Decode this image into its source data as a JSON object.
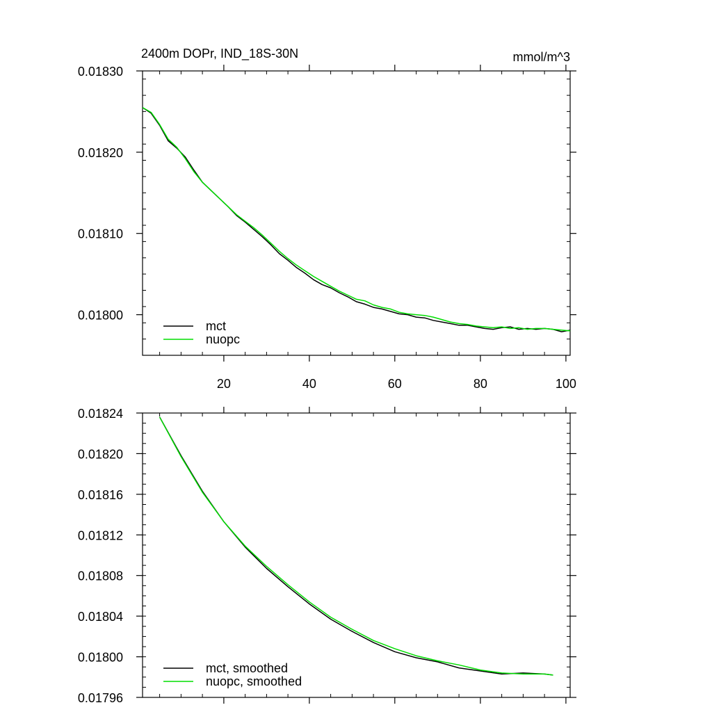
{
  "chart_data": [
    {
      "type": "line",
      "title": "2400m DOPr, IND_18S-30N",
      "units": "mmol/m^3",
      "xlim": [
        1,
        101
      ],
      "ylim": [
        0.01795,
        0.0183
      ],
      "x_ticks": [
        20,
        40,
        60,
        80,
        100
      ],
      "x_tick_labels": [
        "20",
        "40",
        "60",
        "80",
        "100"
      ],
      "y_ticks": [
        0.018,
        0.0181,
        0.0182,
        0.0183
      ],
      "y_tick_labels": [
        "0.01800",
        "0.01810",
        "0.01820",
        "0.01830"
      ],
      "grid": false,
      "legend": "bottom-left",
      "series": [
        {
          "name": "mct",
          "color": "#000000",
          "x": [
            1,
            3,
            5,
            7,
            9,
            11,
            13,
            15,
            17,
            19,
            21,
            23,
            25,
            27,
            29,
            31,
            33,
            35,
            37,
            39,
            41,
            43,
            45,
            47,
            49,
            51,
            53,
            55,
            57,
            59,
            61,
            63,
            65,
            67,
            69,
            71,
            73,
            75,
            77,
            79,
            81,
            83,
            85,
            87,
            89,
            91,
            93,
            95,
            97,
            99,
            101
          ],
          "values": [
            0.018255,
            0.018248,
            0.018233,
            0.018214,
            0.018205,
            0.018194,
            0.018178,
            0.018163,
            0.018153,
            0.018143,
            0.018133,
            0.018122,
            0.018114,
            0.018105,
            0.018096,
            0.018086,
            0.018075,
            0.018067,
            0.018058,
            0.018051,
            0.018043,
            0.018037,
            0.018033,
            0.018027,
            0.018022,
            0.018016,
            0.018013,
            0.018009,
            0.018007,
            0.018004,
            0.018001,
            0.018,
            0.017997,
            0.017996,
            0.017993,
            0.017991,
            0.017989,
            0.017987,
            0.017987,
            0.017985,
            0.017983,
            0.017982,
            0.017984,
            0.017985,
            0.017982,
            0.017983,
            0.017982,
            0.017983,
            0.017982,
            0.017979,
            0.017981
          ]
        },
        {
          "name": "nuopc",
          "color": "#00dd00",
          "x": [
            1,
            3,
            5,
            7,
            9,
            11,
            13,
            15,
            17,
            19,
            21,
            23,
            25,
            27,
            29,
            31,
            33,
            35,
            37,
            39,
            41,
            43,
            45,
            47,
            49,
            51,
            53,
            55,
            57,
            59,
            61,
            63,
            65,
            67,
            69,
            71,
            73,
            75,
            77,
            79,
            81,
            83,
            85,
            87,
            89,
            91,
            93,
            95,
            97,
            99,
            101
          ],
          "values": [
            0.018255,
            0.018249,
            0.018234,
            0.018216,
            0.018206,
            0.018192,
            0.018176,
            0.018163,
            0.018153,
            0.018143,
            0.018133,
            0.018123,
            0.018115,
            0.018107,
            0.018098,
            0.018088,
            0.018078,
            0.018069,
            0.018061,
            0.018054,
            0.018047,
            0.018041,
            0.018035,
            0.018029,
            0.018024,
            0.018019,
            0.018017,
            0.018012,
            0.018009,
            0.018007,
            0.018003,
            0.018001,
            0.018,
            0.017999,
            0.017997,
            0.017994,
            0.017991,
            0.017989,
            0.017988,
            0.017986,
            0.017985,
            0.017984,
            0.017985,
            0.017983,
            0.017984,
            0.017982,
            0.017983,
            0.017983,
            0.017982,
            0.017981,
            0.01798
          ]
        }
      ]
    },
    {
      "type": "line",
      "xlim": [
        1,
        101
      ],
      "ylim": [
        0.01796,
        0.01824
      ],
      "x_ticks": [
        20,
        40,
        60,
        80,
        100
      ],
      "y_ticks": [
        0.01796,
        0.018,
        0.01804,
        0.01808,
        0.01812,
        0.01816,
        0.0182,
        0.01824
      ],
      "y_tick_labels": [
        "0.01796",
        "0.01800",
        "0.01804",
        "0.01808",
        "0.01812",
        "0.01816",
        "0.01820",
        "0.01824"
      ],
      "grid": false,
      "legend": "bottom-left",
      "series": [
        {
          "name": "mct, smoothed",
          "color": "#000000",
          "x": [
            5,
            10,
            15,
            20,
            25,
            30,
            35,
            40,
            45,
            50,
            55,
            60,
            65,
            70,
            75,
            80,
            85,
            90,
            95,
            97
          ],
          "values": [
            0.018236,
            0.018198,
            0.018163,
            0.018133,
            0.018108,
            0.018087,
            0.018069,
            0.018052,
            0.018037,
            0.018025,
            0.018014,
            0.018005,
            0.017999,
            0.017995,
            0.017989,
            0.017986,
            0.017983,
            0.017984,
            0.017983,
            0.017982
          ]
        },
        {
          "name": "nuopc, smoothed",
          "color": "#00dd00",
          "x": [
            5,
            10,
            15,
            20,
            25,
            30,
            35,
            40,
            45,
            50,
            55,
            60,
            65,
            70,
            75,
            80,
            85,
            90,
            95,
            97
          ],
          "values": [
            0.018236,
            0.018197,
            0.018162,
            0.018133,
            0.018109,
            0.018089,
            0.018071,
            0.018054,
            0.018039,
            0.018027,
            0.018016,
            0.018008,
            0.018001,
            0.017996,
            0.017992,
            0.017987,
            0.017984,
            0.017983,
            0.017983,
            0.017982
          ]
        }
      ]
    }
  ]
}
